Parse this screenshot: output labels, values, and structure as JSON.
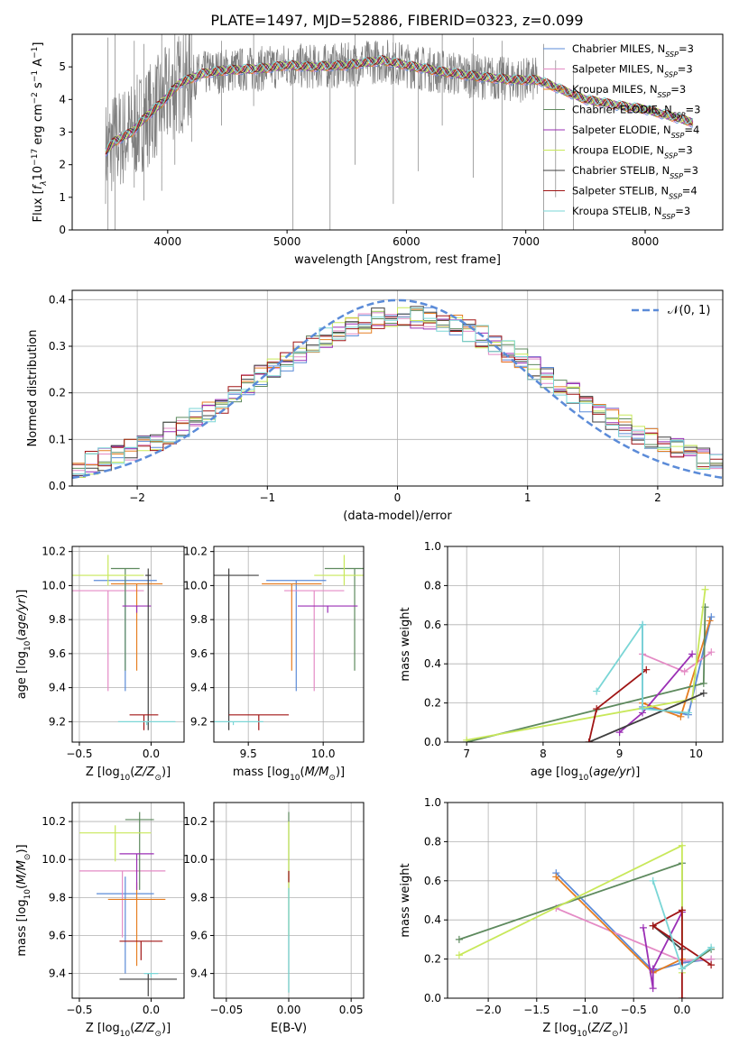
{
  "title": "PLATE=1497, MJD=52886, FIBERID=0323, z=0.099",
  "colors": {
    "chab_miles": "#5b8bd8",
    "salp_miles": "#e48bc5",
    "krou_miles": "#e67e22",
    "chab_elodie": "#5e8a5e",
    "salp_elodie": "#9b2fb5",
    "krou_elodie": "#c8e85a",
    "chab_stelib": "#404040",
    "salp_stelib": "#a01515",
    "krou_stelib": "#7ad6d6",
    "data": "#7f7f7f",
    "gauss": "#5b8bd8"
  },
  "chart_data": [
    {
      "type": "line",
      "name": "spectrum",
      "xlabel": "wavelength [Angstrom, rest frame]",
      "ylabel": "Flux [f_λ 10^-17 erg cm^-2 s^-1 A^-1]",
      "xlim": [
        3200,
        8650
      ],
      "ylim": [
        0,
        6
      ],
      "xticks": [
        "4000",
        "5000",
        "6000",
        "7000",
        "8000"
      ],
      "yticks": [
        "0",
        "1",
        "2",
        "3",
        "4",
        "5"
      ],
      "legend": {
        "placement": "top-right",
        "entries": [
          {
            "label": "Chabrier MILES, N",
            "sub": "SSP",
            "tail": "=3",
            "color": "chab_miles"
          },
          {
            "label": "Salpeter MILES, N",
            "sub": "SSP",
            "tail": "=3",
            "color": "salp_miles"
          },
          {
            "label": "Kroupa MILES, N",
            "sub": "SSP",
            "tail": "=3",
            "color": "krou_miles"
          },
          {
            "label": "Chabrier ELODIE, N",
            "sub": "SSP",
            "tail": "=3",
            "color": "chab_elodie"
          },
          {
            "label": "Salpeter ELODIE, N",
            "sub": "SSP",
            "tail": "=4",
            "color": "salp_elodie"
          },
          {
            "label": "Kroupa ELODIE, N",
            "sub": "SSP",
            "tail": "=3",
            "color": "krou_elodie"
          },
          {
            "label": "Chabrier STELIB, N",
            "sub": "SSP",
            "tail": "=3",
            "color": "chab_stelib"
          },
          {
            "label": "Salpeter STELIB, N",
            "sub": "SSP",
            "tail": "=4",
            "color": "salp_stelib"
          },
          {
            "label": "Kroupa STELIB, N",
            "sub": "SSP",
            "tail": "=3",
            "color": "krou_stelib"
          }
        ]
      },
      "continuum": [
        [
          3480,
          2.4
        ],
        [
          3550,
          2.7
        ],
        [
          3700,
          3.0
        ],
        [
          3800,
          3.4
        ],
        [
          3950,
          3.9
        ],
        [
          4100,
          4.5
        ],
        [
          4300,
          4.8
        ],
        [
          4500,
          4.9
        ],
        [
          4800,
          4.95
        ],
        [
          5000,
          5.05
        ],
        [
          5200,
          5.0
        ],
        [
          5500,
          5.05
        ],
        [
          5800,
          5.2
        ],
        [
          6000,
          5.05
        ],
        [
          6300,
          4.85
        ],
        [
          6600,
          4.7
        ],
        [
          6900,
          4.6
        ],
        [
          7100,
          4.6
        ],
        [
          7300,
          4.3
        ],
        [
          7500,
          4.0
        ],
        [
          7800,
          3.8
        ],
        [
          8000,
          3.7
        ],
        [
          8200,
          3.5
        ],
        [
          8400,
          3.3
        ]
      ],
      "spikes": [
        [
          3500,
          0,
          5.9
        ],
        [
          3560,
          0,
          6
        ],
        [
          3720,
          1.3,
          5.8
        ],
        [
          3800,
          0.9,
          5.7
        ],
        [
          3950,
          1.2,
          6
        ],
        [
          4060,
          2.0,
          6
        ],
        [
          4200,
          2.7,
          6
        ],
        [
          4450,
          3.2,
          5.8
        ],
        [
          4720,
          3.8,
          6
        ],
        [
          5050,
          0,
          5.3
        ],
        [
          5360,
          0,
          5.4
        ],
        [
          5570,
          2.0,
          6
        ],
        [
          5890,
          0.8,
          6
        ],
        [
          6100,
          1.8,
          5.6
        ],
        [
          6300,
          3.2,
          6
        ],
        [
          6560,
          1.6,
          5.9
        ],
        [
          6800,
          0,
          5.8
        ],
        [
          7150,
          0,
          5.7
        ],
        [
          7250,
          1.0,
          5.2
        ],
        [
          7400,
          0,
          5.0
        ]
      ]
    },
    {
      "type": "line",
      "name": "residual-histogram",
      "xlabel": "(data-model)/error",
      "ylabel": "Normed distribution",
      "xlim": [
        -2.5,
        2.5
      ],
      "ylim": [
        0,
        0.42
      ],
      "xticks": [
        "−2",
        "−1",
        "0",
        "1",
        "2"
      ],
      "yticks": [
        "0.0",
        "0.1",
        "0.2",
        "0.3",
        "0.4"
      ],
      "legend": {
        "placement": "top-right",
        "entries": [
          {
            "label": "𝒩(0, 1)",
            "color": "gauss"
          }
        ]
      },
      "bins_start": -2.5,
      "bin_width": 0.1
    },
    {
      "type": "scatter",
      "name": "age-vs-Z",
      "xlabel": "Z [log10(Z/Z⊙)]",
      "ylabel": "age  [log10(age/yr)]",
      "xlim": [
        -0.55,
        0.23
      ],
      "ylim": [
        9.08,
        10.23
      ],
      "xticks": [
        "−0.5",
        "0.0"
      ],
      "yticks": [
        "9.2",
        "9.4",
        "9.6",
        "9.8",
        "10.0",
        "10.2"
      ],
      "points": [
        {
          "color": "chab_miles",
          "x": -0.18,
          "xerr": 0.22,
          "y": 10.03,
          "yerr": [
            9.38,
            10.03
          ]
        },
        {
          "color": "salp_miles",
          "x": -0.3,
          "xerr": 0.25,
          "y": 9.97,
          "yerr": [
            9.38,
            9.97
          ]
        },
        {
          "color": "krou_miles",
          "x": -0.1,
          "xerr": 0.18,
          "y": 10.01,
          "yerr": [
            9.5,
            10.01
          ]
        },
        {
          "color": "chab_elodie",
          "x": -0.18,
          "xerr": 0.1,
          "y": 10.1,
          "yerr": [
            9.5,
            10.1
          ]
        },
        {
          "color": "salp_elodie",
          "x": -0.1,
          "xerr": 0.1,
          "y": 9.88,
          "yerr": [
            9.84,
            9.88
          ]
        },
        {
          "color": "krou_elodie",
          "x": -0.3,
          "xerr": 0.25,
          "y": 10.06,
          "yerr": [
            10.0,
            10.18
          ]
        },
        {
          "color": "chab_stelib",
          "x": -0.02,
          "xerr": 0.02,
          "y": 10.06,
          "yerr": [
            9.15,
            10.1
          ]
        },
        {
          "color": "salp_stelib",
          "x": -0.05,
          "xerr": 0.1,
          "y": 9.24,
          "yerr": [
            9.15,
            9.24
          ]
        },
        {
          "color": "krou_stelib",
          "x": -0.03,
          "xerr": 0.2,
          "y": 9.2,
          "yerr": [
            9.18,
            9.2
          ]
        }
      ]
    },
    {
      "type": "scatter",
      "name": "age-vs-mass",
      "xlabel": "mass [log10(M/M⊙)]",
      "ylabel": "",
      "xlim": [
        9.27,
        10.27
      ],
      "ylim": [
        9.08,
        10.23
      ],
      "xticks": [
        "9.5",
        "10.0"
      ],
      "yticks": [
        "9.2",
        "9.4",
        "9.6",
        "9.8",
        "10.0",
        "10.2"
      ],
      "points": [
        {
          "color": "chab_miles",
          "x": 9.82,
          "xerr": 0.2,
          "y": 10.03,
          "yerr": [
            9.38,
            10.03
          ]
        },
        {
          "color": "salp_miles",
          "x": 9.94,
          "xerr": 0.2,
          "y": 9.97,
          "yerr": [
            9.38,
            9.97
          ]
        },
        {
          "color": "krou_miles",
          "x": 9.79,
          "xerr": 0.2,
          "y": 10.01,
          "yerr": [
            9.5,
            10.01
          ]
        },
        {
          "color": "chab_elodie",
          "x": 10.21,
          "xerr": 0.2,
          "y": 10.1,
          "yerr": [
            9.5,
            10.1
          ]
        },
        {
          "color": "salp_elodie",
          "x": 10.03,
          "xerr": 0.2,
          "y": 9.88,
          "yerr": [
            9.84,
            9.88
          ]
        },
        {
          "color": "krou_elodie",
          "x": 10.14,
          "xerr": 0.2,
          "y": 10.06,
          "yerr": [
            10.0,
            10.18
          ]
        },
        {
          "color": "chab_stelib",
          "x": 9.37,
          "xerr": 0.2,
          "y": 10.06,
          "yerr": [
            9.15,
            10.1
          ]
        },
        {
          "color": "salp_stelib",
          "x": 9.57,
          "xerr": 0.2,
          "y": 9.24,
          "yerr": [
            9.15,
            9.24
          ]
        },
        {
          "color": "krou_stelib",
          "x": 9.4,
          "xerr": 0.2,
          "y": 9.2,
          "yerr": [
            9.18,
            9.2
          ]
        }
      ]
    },
    {
      "type": "line",
      "name": "mass-weight-vs-age",
      "xlabel": "age  [log10(age/yr)]",
      "ylabel": "mass weight",
      "xlim": [
        6.75,
        10.35
      ],
      "ylim": [
        0,
        1
      ],
      "xticks": [
        "7",
        "8",
        "9",
        "10"
      ],
      "yticks": [
        "0.0",
        "0.2",
        "0.4",
        "0.6",
        "0.8",
        "1.0"
      ],
      "series": [
        {
          "color": "chab_miles",
          "pts": [
            [
              9.3,
              0.6
            ],
            [
              9.3,
              0.18
            ],
            [
              9.9,
              0.14
            ],
            [
              10.2,
              0.64
            ]
          ]
        },
        {
          "color": "salp_miles",
          "pts": [
            [
              9.3,
              0.45
            ],
            [
              9.85,
              0.36
            ],
            [
              10.2,
              0.46
            ]
          ]
        },
        {
          "color": "krou_miles",
          "pts": [
            [
              9.3,
              0.2
            ],
            [
              9.8,
              0.13
            ],
            [
              10.18,
              0.62
            ]
          ]
        },
        {
          "color": "chab_elodie",
          "pts": [
            [
              7.0,
              0.0
            ],
            [
              10.1,
              0.3
            ],
            [
              10.12,
              0.69
            ]
          ]
        },
        {
          "color": "salp_elodie",
          "pts": [
            [
              9.0,
              0.05
            ],
            [
              9.3,
              0.15
            ],
            [
              9.95,
              0.45
            ]
          ]
        },
        {
          "color": "krou_elodie",
          "pts": [
            [
              7.0,
              0.01
            ],
            [
              9.95,
              0.22
            ],
            [
              10.12,
              0.78
            ]
          ]
        },
        {
          "color": "chab_stelib",
          "pts": [
            [
              8.6,
              0.0
            ],
            [
              10.1,
              0.25
            ]
          ]
        },
        {
          "color": "salp_stelib",
          "pts": [
            [
              8.6,
              0.0
            ],
            [
              8.7,
              0.17
            ],
            [
              9.35,
              0.37
            ]
          ]
        },
        {
          "color": "krou_stelib",
          "pts": [
            [
              8.7,
              0.26
            ],
            [
              9.3,
              0.6
            ],
            [
              9.3,
              0.17
            ],
            [
              9.9,
              0.15
            ]
          ]
        }
      ]
    },
    {
      "type": "scatter",
      "name": "mass-vs-Z",
      "xlabel": "Z [log10(Z/Z⊙)]",
      "ylabel": "mass [log10(M/M⊙)]",
      "xlim": [
        -0.55,
        0.23
      ],
      "ylim": [
        9.27,
        10.3
      ],
      "xticks": [
        "−0.5",
        "0.0"
      ],
      "yticks": [
        "9.4",
        "9.6",
        "9.8",
        "10.0",
        "10.2"
      ],
      "points": [
        {
          "color": "chab_miles",
          "x": -0.18,
          "xerr": 0.2,
          "y": 9.82,
          "yerr": [
            9.4,
            9.91
          ]
        },
        {
          "color": "salp_miles",
          "x": -0.2,
          "xerr": 0.3,
          "y": 9.94,
          "yerr": [
            9.59,
            9.94
          ]
        },
        {
          "color": "krou_miles",
          "x": -0.1,
          "xerr": 0.2,
          "y": 9.79,
          "yerr": [
            9.44,
            9.88
          ]
        },
        {
          "color": "chab_elodie",
          "x": -0.08,
          "xerr": 0.1,
          "y": 10.21,
          "yerr": [
            9.84,
            10.25
          ]
        },
        {
          "color": "salp_elodie",
          "x": -0.1,
          "xerr": 0.12,
          "y": 10.03,
          "yerr": [
            9.84,
            10.03
          ]
        },
        {
          "color": "krou_elodie",
          "x": -0.25,
          "xerr": 0.25,
          "y": 10.14,
          "yerr": [
            9.99,
            10.18
          ]
        },
        {
          "color": "chab_stelib",
          "x": -0.02,
          "xerr": 0.2,
          "y": 9.37,
          "yerr": [
            9.28,
            9.4
          ]
        },
        {
          "color": "salp_stelib",
          "x": -0.07,
          "xerr": 0.15,
          "y": 9.57,
          "yerr": [
            9.47,
            9.57
          ]
        },
        {
          "color": "krou_stelib",
          "x": 0.0,
          "xerr": 0.05,
          "y": 9.4,
          "yerr": [
            9.38,
            9.4
          ]
        }
      ]
    },
    {
      "type": "scatter",
      "name": "mass-vs-EBV",
      "xlabel": "E(B-V)",
      "ylabel": "",
      "xlim": [
        -0.06,
        0.06
      ],
      "ylim": [
        9.27,
        10.3
      ],
      "xticks": [
        "−0.05",
        "0.00",
        "0.05"
      ],
      "yticks": [
        "9.4",
        "9.6",
        "9.8",
        "10.0",
        "10.2"
      ],
      "points": [
        {
          "color": "chab_elodie",
          "x": 0.0,
          "xerr": 0,
          "y": 10.0,
          "yerr": [
            9.3,
            10.25
          ]
        },
        {
          "color": "krou_elodie",
          "x": 0.0,
          "xerr": 0,
          "y": 10.0,
          "yerr": [
            9.6,
            10.2
          ]
        },
        {
          "color": "salp_stelib",
          "x": 0.0,
          "xerr": 0,
          "y": 9.9,
          "yerr": [
            9.88,
            9.94
          ]
        },
        {
          "color": "krou_stelib",
          "x": 0.0,
          "xerr": 0,
          "y": 9.6,
          "yerr": [
            9.3,
            9.85
          ]
        }
      ]
    },
    {
      "type": "line",
      "name": "mass-weight-vs-Z",
      "xlabel": "Z [log10(Z/Z⊙)]",
      "ylabel": "mass weight",
      "xlim": [
        -2.42,
        0.42
      ],
      "ylim": [
        0,
        1
      ],
      "xticks": [
        "−2.0",
        "−1.5",
        "−1.0",
        "−0.5",
        "0.0"
      ],
      "yticks": [
        "0.0",
        "0.2",
        "0.4",
        "0.6",
        "0.8",
        "1.0"
      ],
      "series": [
        {
          "color": "chab_miles",
          "pts": [
            [
              -1.3,
              0.64
            ],
            [
              -0.3,
              0.14
            ],
            [
              0.0,
              0.18
            ],
            [
              0.3,
              0.2
            ]
          ]
        },
        {
          "color": "salp_miles",
          "pts": [
            [
              -1.3,
              0.46
            ],
            [
              0.0,
              0.19
            ],
            [
              0.3,
              0.2
            ]
          ]
        },
        {
          "color": "krou_miles",
          "pts": [
            [
              -1.3,
              0.62
            ],
            [
              -0.3,
              0.13
            ],
            [
              0.0,
              0.2
            ]
          ]
        },
        {
          "color": "chab_elodie",
          "pts": [
            [
              -2.3,
              0.3
            ],
            [
              0.0,
              0.69
            ],
            [
              0.0,
              0.15
            ],
            [
              0.3,
              0.25
            ]
          ]
        },
        {
          "color": "salp_elodie",
          "pts": [
            [
              -0.4,
              0.36
            ],
            [
              -0.3,
              0.05
            ],
            [
              -0.3,
              0.15
            ],
            [
              0.0,
              0.44
            ]
          ]
        },
        {
          "color": "krou_elodie",
          "pts": [
            [
              -2.3,
              0.22
            ],
            [
              0.0,
              0.78
            ],
            [
              0.0,
              0.13
            ]
          ]
        },
        {
          "color": "chab_stelib",
          "pts": [
            [
              -0.3,
              0.37
            ],
            [
              0.0,
              0.25
            ]
          ]
        },
        {
          "color": "salp_stelib",
          "pts": [
            [
              0.0,
              0.0
            ],
            [
              0.0,
              0.45
            ],
            [
              -0.3,
              0.37
            ],
            [
              0.3,
              0.17
            ]
          ]
        },
        {
          "color": "krou_stelib",
          "pts": [
            [
              -0.3,
              0.6
            ],
            [
              0.0,
              0.15
            ],
            [
              0.3,
              0.26
            ]
          ]
        }
      ]
    }
  ]
}
